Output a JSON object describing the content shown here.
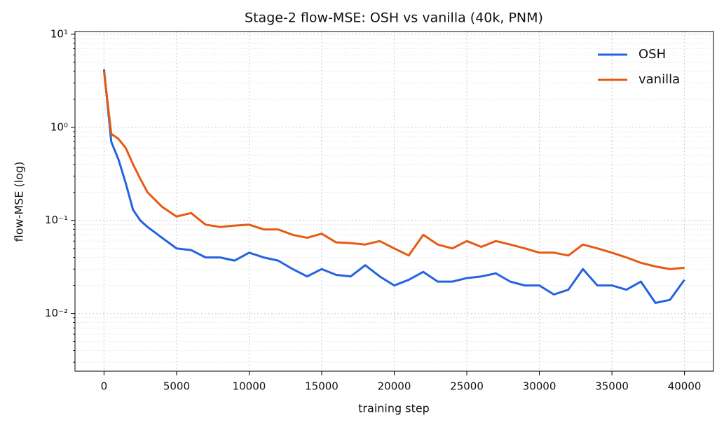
{
  "chart_data": {
    "type": "line",
    "title": "Stage-2 flow-MSE: OSH vs vanilla (40k, PNM)",
    "xlabel": "training step",
    "ylabel": "flow-MSE (log)",
    "x": [
      0,
      500,
      1000,
      1500,
      2000,
      2500,
      3000,
      4000,
      5000,
      6000,
      7000,
      8000,
      9000,
      10000,
      11000,
      12000,
      13000,
      14000,
      15000,
      16000,
      17000,
      18000,
      19000,
      20000,
      21000,
      22000,
      23000,
      24000,
      25000,
      26000,
      27000,
      28000,
      29000,
      30000,
      31000,
      32000,
      33000,
      34000,
      35000,
      36000,
      37000,
      38000,
      39000,
      40000
    ],
    "series": [
      {
        "name": "OSH",
        "color": "#2563e0",
        "values": [
          4.2,
          0.7,
          0.45,
          0.25,
          0.13,
          0.1,
          0.085,
          0.065,
          0.05,
          0.048,
          0.04,
          0.04,
          0.037,
          0.045,
          0.04,
          0.037,
          0.03,
          0.025,
          0.03,
          0.026,
          0.025,
          0.033,
          0.025,
          0.02,
          0.023,
          0.028,
          0.022,
          0.022,
          0.024,
          0.025,
          0.027,
          0.022,
          0.02,
          0.02,
          0.016,
          0.018,
          0.03,
          0.02,
          0.02,
          0.018,
          0.022,
          0.013,
          0.014,
          0.023
        ]
      },
      {
        "name": "vanilla",
        "color": "#e55b13",
        "values": [
          4.0,
          0.85,
          0.75,
          0.6,
          0.4,
          0.28,
          0.2,
          0.14,
          0.11,
          0.12,
          0.09,
          0.085,
          0.088,
          0.09,
          0.08,
          0.08,
          0.07,
          0.065,
          0.072,
          0.058,
          0.057,
          0.055,
          0.06,
          0.05,
          0.042,
          0.07,
          0.055,
          0.05,
          0.06,
          0.052,
          0.06,
          0.055,
          0.05,
          0.045,
          0.045,
          0.042,
          0.055,
          0.05,
          0.045,
          0.04,
          0.035,
          0.032,
          0.03,
          0.031
        ]
      }
    ],
    "xlim": [
      -2000,
      42000
    ],
    "xticks": [
      0,
      5000,
      10000,
      15000,
      20000,
      25000,
      30000,
      35000,
      40000
    ],
    "ylim": [
      0.0024,
      10.7
    ],
    "log_y": true,
    "yticks": [
      {
        "value": 0.01,
        "label": "10⁻²"
      },
      {
        "value": 0.1,
        "label": "10⁻¹"
      },
      {
        "value": 1,
        "label": "10⁰"
      },
      {
        "value": 10,
        "label": "10¹"
      }
    ],
    "grid": true,
    "legend": "upper right"
  }
}
